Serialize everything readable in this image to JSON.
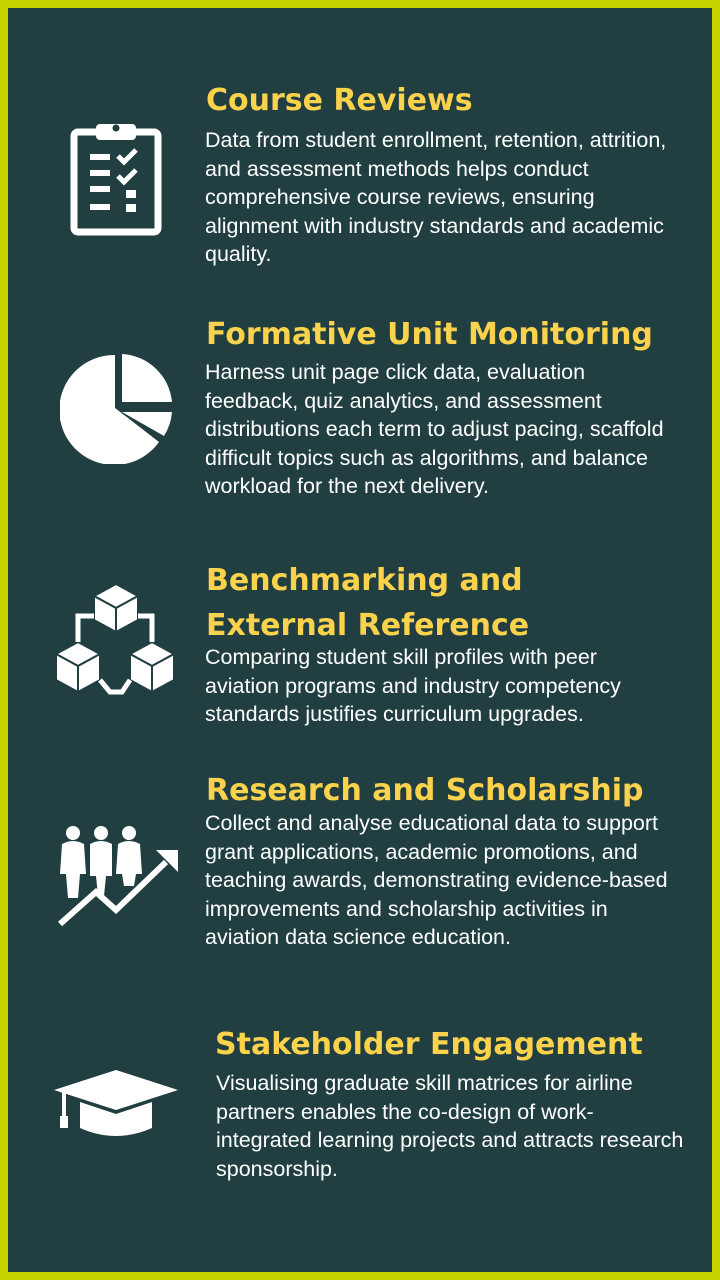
{
  "colors": {
    "border": "#c8d400",
    "background": "#213f41",
    "heading": "#fbd24b",
    "body_text": "#ffffff"
  },
  "sections": [
    {
      "icon": "clipboard-checklist-icon",
      "title": "Course Reviews",
      "body": "Data from student enrollment, retention, attrition, and assessment methods helps conduct comprehensive course reviews, ensuring alignment with industry standards and academic quality."
    },
    {
      "icon": "pie-chart-icon",
      "title": "Formative Unit Monitoring",
      "body": "Harness unit page click data, evaluation feedback, quiz analytics, and assessment distributions each term to adjust pacing, scaffold difficult topics such as algorithms, and balance workload for the next delivery."
    },
    {
      "icon": "connected-cubes-icon",
      "title_lines": [
        "Benchmarking and",
        "External Reference"
      ],
      "body": "Comparing student skill profiles with peer aviation programs and industry competency standards justifies curriculum upgrades."
    },
    {
      "icon": "people-growth-chart-icon",
      "title": "Research and Scholarship",
      "body": "Collect and analyse educational data to support grant applications, academic promotions, and teaching awards, demonstrating evidence-based improvements and scholarship activities in aviation data science education."
    },
    {
      "icon": "graduation-cap-icon",
      "title": "Stakeholder Engagement",
      "body": "Visualising graduate skill matrices for airline partners enables the co-design of work-integrated learning projects and attracts research sponsorship."
    }
  ]
}
